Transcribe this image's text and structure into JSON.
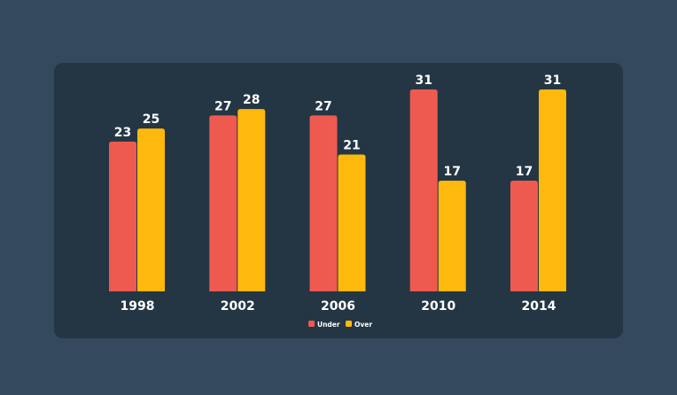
{
  "colors": {
    "page_background": "#34495e",
    "card_background": "#243644",
    "under": "#ef5a50",
    "over": "#ffb80c",
    "text": "#ffffff"
  },
  "chart_data": {
    "type": "bar",
    "categories": [
      "1998",
      "2002",
      "2006",
      "2010",
      "2014"
    ],
    "series": [
      {
        "name": "Under",
        "values": [
          23,
          27,
          27,
          31,
          17
        ],
        "color": "#ef5a50"
      },
      {
        "name": "Over",
        "values": [
          25,
          28,
          21,
          17,
          31
        ],
        "color": "#ffb80c"
      }
    ],
    "ylim": [
      0,
      31
    ],
    "grid": false,
    "legend_position": "bottom-center",
    "data_labels": true
  }
}
